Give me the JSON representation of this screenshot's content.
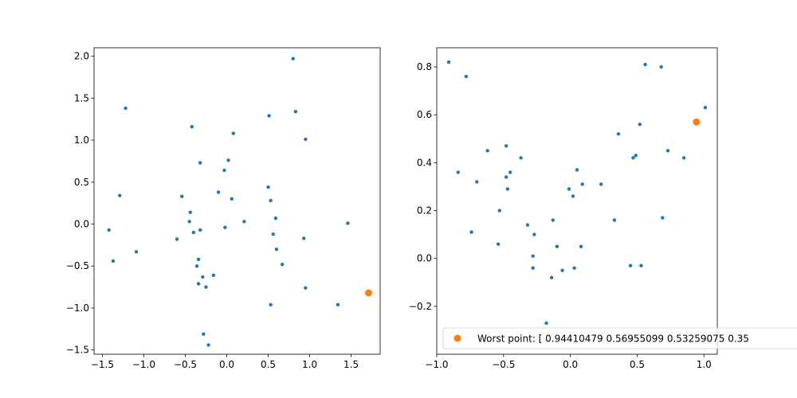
{
  "chart_data": [
    {
      "type": "scatter",
      "xlim": [
        -1.6,
        1.85
      ],
      "ylim": [
        -1.55,
        2.1
      ],
      "xticks": [
        -1.5,
        -1.0,
        -0.5,
        0.0,
        0.5,
        1.0,
        1.5
      ],
      "xtick_labels": [
        "−1.5",
        "−1.0",
        "−0.5",
        "0.0",
        "0.5",
        "1.0",
        "1.5"
      ],
      "yticks": [
        -1.5,
        -1.0,
        -0.5,
        0.0,
        0.5,
        1.0,
        1.5,
        2.0
      ],
      "ytick_labels": [
        "−1.5",
        "−1.0",
        "−0.5",
        "0.0",
        "0.5",
        "1.0",
        "1.5",
        "2.0"
      ],
      "grid": false,
      "series": [
        {
          "color": "#1f77b4",
          "marker": "small-dot",
          "points": [
            [
              -1.42,
              -0.07
            ],
            [
              -1.37,
              -0.44
            ],
            [
              -1.29,
              0.34
            ],
            [
              -1.22,
              1.38
            ],
            [
              -1.09,
              -0.33
            ],
            [
              -0.6,
              -0.18
            ],
            [
              -0.54,
              0.33
            ],
            [
              -0.45,
              0.03
            ],
            [
              -0.44,
              0.14
            ],
            [
              -0.42,
              1.16
            ],
            [
              -0.4,
              -0.1
            ],
            [
              -0.36,
              -0.5
            ],
            [
              -0.34,
              -0.42
            ],
            [
              -0.34,
              -0.71
            ],
            [
              -0.32,
              -0.07
            ],
            [
              -0.32,
              0.73
            ],
            [
              -0.29,
              -0.63
            ],
            [
              -0.28,
              -1.31
            ],
            [
              -0.25,
              -0.75
            ],
            [
              -0.22,
              -1.44
            ],
            [
              -0.16,
              -0.61
            ],
            [
              -0.1,
              0.38
            ],
            [
              -0.03,
              0.64
            ],
            [
              -0.02,
              -0.04
            ],
            [
              0.02,
              0.76
            ],
            [
              0.06,
              0.3
            ],
            [
              0.08,
              1.08
            ],
            [
              0.21,
              0.03
            ],
            [
              0.5,
              0.44
            ],
            [
              0.51,
              1.29
            ],
            [
              0.53,
              0.28
            ],
            [
              0.53,
              -0.96
            ],
            [
              0.56,
              -0.12
            ],
            [
              0.59,
              0.07
            ],
            [
              0.6,
              -0.3
            ],
            [
              0.67,
              -0.48
            ],
            [
              0.8,
              1.97
            ],
            [
              0.83,
              1.34
            ],
            [
              0.93,
              -0.17
            ],
            [
              0.95,
              1.01
            ],
            [
              0.95,
              -0.76
            ],
            [
              1.34,
              -0.96
            ],
            [
              1.46,
              0.01
            ]
          ]
        },
        {
          "color": "#ff7f0e",
          "marker": "large-dot",
          "points": [
            [
              1.71,
              -0.82
            ]
          ]
        }
      ]
    },
    {
      "type": "scatter",
      "xlim": [
        -1.0,
        1.1
      ],
      "ylim": [
        -0.4,
        0.88
      ],
      "xticks": [
        -1.0,
        -0.5,
        0.0,
        0.5,
        1.0
      ],
      "xtick_labels": [
        "−1.0",
        "−0.5",
        "0.0",
        "0.5",
        "1.0"
      ],
      "yticks": [
        -0.2,
        0.0,
        0.2,
        0.4,
        0.6,
        0.8
      ],
      "ytick_labels": [
        "−0.2",
        "0.0",
        "0.2",
        "0.4",
        "0.6",
        "0.8"
      ],
      "grid": false,
      "legend": {
        "location": "lower-left",
        "entries": [
          {
            "label": "Worst point: [ 0.94410479  0.56955099  0.53259075  0.35",
            "color": "#ff7f0e"
          }
        ]
      },
      "series": [
        {
          "color": "#1f77b4",
          "marker": "small-dot",
          "points": [
            [
              -0.91,
              0.82
            ],
            [
              -0.84,
              0.36
            ],
            [
              -0.78,
              0.76
            ],
            [
              -0.74,
              0.11
            ],
            [
              -0.7,
              0.32
            ],
            [
              -0.62,
              0.45
            ],
            [
              -0.54,
              0.06
            ],
            [
              -0.53,
              0.2
            ],
            [
              -0.48,
              0.47
            ],
            [
              -0.48,
              0.34
            ],
            [
              -0.47,
              0.29
            ],
            [
              -0.45,
              0.36
            ],
            [
              -0.37,
              0.42
            ],
            [
              -0.32,
              0.14
            ],
            [
              -0.28,
              0.01
            ],
            [
              -0.28,
              -0.04
            ],
            [
              -0.27,
              0.1
            ],
            [
              -0.18,
              -0.27
            ],
            [
              -0.14,
              -0.08
            ],
            [
              -0.13,
              0.16
            ],
            [
              -0.1,
              0.05
            ],
            [
              -0.06,
              -0.05
            ],
            [
              -0.01,
              0.29
            ],
            [
              0.02,
              0.26
            ],
            [
              0.03,
              -0.04
            ],
            [
              0.05,
              0.37
            ],
            [
              0.08,
              0.05
            ],
            [
              0.09,
              0.31
            ],
            [
              0.23,
              0.31
            ],
            [
              0.33,
              0.16
            ],
            [
              0.36,
              0.52
            ],
            [
              0.45,
              -0.03
            ],
            [
              0.47,
              0.42
            ],
            [
              0.49,
              0.43
            ],
            [
              0.52,
              0.56
            ],
            [
              0.53,
              -0.03
            ],
            [
              0.56,
              0.81
            ],
            [
              0.68,
              0.8
            ],
            [
              0.69,
              0.17
            ],
            [
              0.73,
              0.45
            ],
            [
              0.85,
              0.42
            ],
            [
              1.01,
              0.63
            ]
          ]
        },
        {
          "color": "#ff7f0e",
          "marker": "large-dot",
          "points": [
            [
              0.944,
              0.57
            ]
          ]
        }
      ]
    }
  ]
}
